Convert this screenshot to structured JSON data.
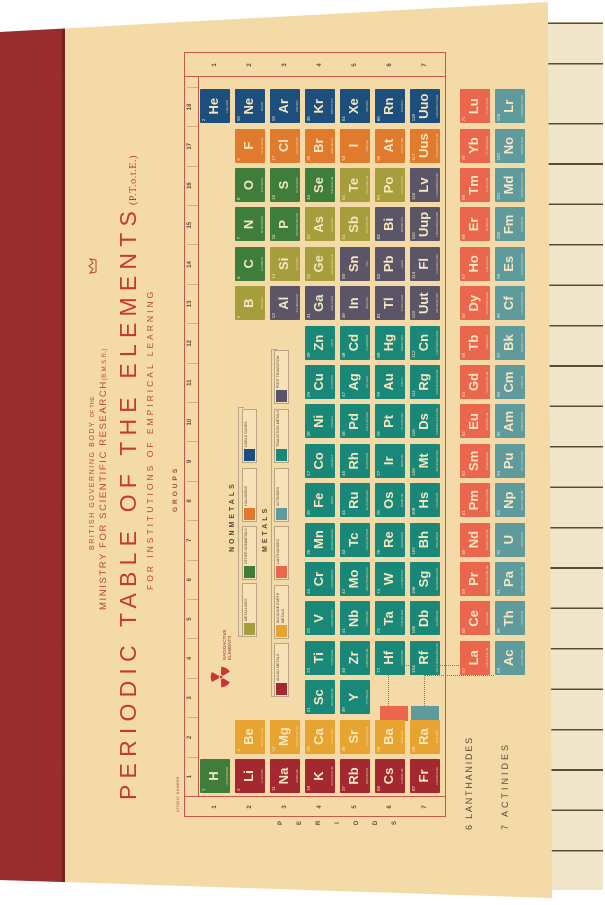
{
  "header": {
    "british": "BRITISH GOVERNING BODY",
    "british_small": "OF THE",
    "ministry": "MINISTRY FOR SCIENTIFIC RESEARCH",
    "ministry_abbr": "(B.M.S.R.)",
    "title": "PERIODIC TABLE OF THE ELEMENTS",
    "title_abbr": "(P.T.o.t.E.)",
    "subtitle": "FOR INSTITUTIONS OF EMPIRICAL LEARNING"
  },
  "labels": {
    "groups": "GROUPS",
    "atomic_number": "ATOMIC NUMBER",
    "periods_letters": [
      "P",
      "E",
      "R",
      "I",
      "O",
      "D",
      "S"
    ],
    "nonmetals": "NONMETALS",
    "metals": "METALS",
    "radioactive": "RADIOACTIVE ELEMENTS",
    "lanthanides": "LANTHANIDES",
    "actinides": "ACTINIDES",
    "lanthanides_period": "6",
    "actinides_period": "7"
  },
  "group_numbers": [
    "1",
    "2",
    "3",
    "4",
    "5",
    "6",
    "7",
    "8",
    "9",
    "10",
    "11",
    "12",
    "13",
    "14",
    "15",
    "16",
    "17",
    "18"
  ],
  "period_numbers": [
    "1",
    "2",
    "3",
    "4",
    "5",
    "6",
    "7"
  ],
  "category_colors": {
    "nm": "#3f7e3a",
    "ng": "#1d4f7c",
    "ha": "#e07b2e",
    "ml": "#a69e3c",
    "pt": "#5b5568",
    "tm": "#1a8878",
    "am": "#a3282f",
    "ae": "#e8a431",
    "la": "#ea664c",
    "ac": "#5f9a9c"
  },
  "legend": {
    "nonmetals": [
      {
        "cat": "ml",
        "label": "METALLOIDS"
      },
      {
        "cat": "nm",
        "label": "OTHER NONMETALS"
      },
      {
        "cat": "ha",
        "label": "HALOGENS"
      },
      {
        "cat": "ng",
        "label": "NOBLE GASES"
      }
    ],
    "metals": [
      {
        "cat": "am",
        "label": "ALKALI METALS"
      },
      {
        "cat": "ae",
        "label": "ALKALINE EARTH METALS"
      },
      {
        "cat": "la",
        "label": "LANTHANIDES"
      },
      {
        "cat": "ac",
        "label": "ACTINIDES"
      },
      {
        "cat": "tm",
        "label": "TRANSITION METALS"
      },
      {
        "cat": "pt",
        "label": "POST TRANSITION"
      }
    ]
  },
  "elements": [
    [
      1,
      "H",
      "HYDROGEN",
      "nm",
      1,
      1
    ],
    [
      2,
      "He",
      "HELIUM",
      "ng",
      18,
      1
    ],
    [
      3,
      "Li",
      "LITHIUM",
      "am",
      1,
      2
    ],
    [
      4,
      "Be",
      "BERYLLIUM",
      "ae",
      2,
      2
    ],
    [
      5,
      "B",
      "BORON",
      "ml",
      13,
      2
    ],
    [
      6,
      "C",
      "CARBON",
      "nm",
      14,
      2
    ],
    [
      7,
      "N",
      "NITROGEN",
      "nm",
      15,
      2
    ],
    [
      8,
      "O",
      "OXYGEN",
      "nm",
      16,
      2
    ],
    [
      9,
      "F",
      "FLUORINE",
      "ha",
      17,
      2
    ],
    [
      10,
      "Ne",
      "NEON",
      "ng",
      18,
      2
    ],
    [
      11,
      "Na",
      "SODIUM",
      "am",
      1,
      3
    ],
    [
      12,
      "Mg",
      "MAGNESIUM",
      "ae",
      2,
      3
    ],
    [
      13,
      "Al",
      "ALUMINIUM",
      "pt",
      13,
      3
    ],
    [
      14,
      "Si",
      "SILICON",
      "ml",
      14,
      3
    ],
    [
      15,
      "P",
      "PHOSPHORUS",
      "nm",
      15,
      3
    ],
    [
      16,
      "S",
      "SULPHUR",
      "nm",
      16,
      3
    ],
    [
      17,
      "Cl",
      "CHLORINE",
      "ha",
      17,
      3
    ],
    [
      18,
      "Ar",
      "ARGON",
      "ng",
      18,
      3
    ],
    [
      19,
      "K",
      "POTASSIUM",
      "am",
      1,
      4
    ],
    [
      20,
      "Ca",
      "CALCIUM",
      "ae",
      2,
      4
    ],
    [
      21,
      "Sc",
      "SCANDIUM",
      "tm",
      3,
      4
    ],
    [
      22,
      "Ti",
      "TITANIUM",
      "tm",
      4,
      4
    ],
    [
      23,
      "V",
      "VANADIUM",
      "tm",
      5,
      4
    ],
    [
      24,
      "Cr",
      "CHROMIUM",
      "tm",
      6,
      4
    ],
    [
      25,
      "Mn",
      "MANGANESE",
      "tm",
      7,
      4
    ],
    [
      26,
      "Fe",
      "IRON",
      "tm",
      8,
      4
    ],
    [
      27,
      "Co",
      "COBALT",
      "tm",
      9,
      4
    ],
    [
      28,
      "Ni",
      "NICKEL",
      "tm",
      10,
      4
    ],
    [
      29,
      "Cu",
      "COPPER",
      "tm",
      11,
      4
    ],
    [
      30,
      "Zn",
      "ZINC",
      "tm",
      12,
      4
    ],
    [
      31,
      "Ga",
      "GALLIUM",
      "pt",
      13,
      4
    ],
    [
      32,
      "Ge",
      "GERMANIUM",
      "ml",
      14,
      4
    ],
    [
      33,
      "As",
      "ARSENIC",
      "ml",
      15,
      4
    ],
    [
      34,
      "Se",
      "SELENIUM",
      "nm",
      16,
      4
    ],
    [
      35,
      "Br",
      "BROMINE",
      "ha",
      17,
      4
    ],
    [
      36,
      "Kr",
      "KRYPTON",
      "ng",
      18,
      4
    ],
    [
      37,
      "Rb",
      "RUBIDIUM",
      "am",
      1,
      5
    ],
    [
      38,
      "Sr",
      "STRONTIUM",
      "ae",
      2,
      5
    ],
    [
      39,
      "Y",
      "YTTRIUM",
      "tm",
      3,
      5
    ],
    [
      40,
      "Zr",
      "ZIRCONIUM",
      "tm",
      4,
      5
    ],
    [
      41,
      "Nb",
      "NIOBIUM",
      "tm",
      5,
      5
    ],
    [
      42,
      "Mo",
      "MOLYBDENUM",
      "tm",
      6,
      5
    ],
    [
      43,
      "Tc",
      "TECHNETIUM",
      "tm",
      7,
      5
    ],
    [
      44,
      "Ru",
      "RUTHENIUM",
      "tm",
      8,
      5
    ],
    [
      45,
      "Rh",
      "RHODIUM",
      "tm",
      9,
      5
    ],
    [
      46,
      "Pd",
      "PALLADIUM",
      "tm",
      10,
      5
    ],
    [
      47,
      "Ag",
      "SILVER",
      "tm",
      11,
      5
    ],
    [
      48,
      "Cd",
      "CADMIUM",
      "tm",
      12,
      5
    ],
    [
      49,
      "In",
      "INDIUM",
      "pt",
      13,
      5
    ],
    [
      50,
      "Sn",
      "TIN",
      "pt",
      14,
      5
    ],
    [
      51,
      "Sb",
      "ANTIMONY",
      "ml",
      15,
      5
    ],
    [
      52,
      "Te",
      "TELLURIUM",
      "ml",
      16,
      5
    ],
    [
      53,
      "I",
      "IODINE",
      "ha",
      17,
      5
    ],
    [
      54,
      "Xe",
      "XENON",
      "ng",
      18,
      5
    ],
    [
      55,
      "Cs",
      "CAESIUM",
      "am",
      1,
      6
    ],
    [
      56,
      "Ba",
      "BARIUM",
      "ae",
      2,
      6
    ],
    [
      72,
      "Hf",
      "HAFNIUM",
      "tm",
      4,
      6
    ],
    [
      73,
      "Ta",
      "TANTALUM",
      "tm",
      5,
      6
    ],
    [
      74,
      "W",
      "TUNGSTEN",
      "tm",
      6,
      6
    ],
    [
      75,
      "Re",
      "RHENIUM",
      "tm",
      7,
      6
    ],
    [
      76,
      "Os",
      "OSMIUM",
      "tm",
      8,
      6
    ],
    [
      77,
      "Ir",
      "IRIDIUM",
      "tm",
      9,
      6
    ],
    [
      78,
      "Pt",
      "PLATINUM",
      "tm",
      10,
      6
    ],
    [
      79,
      "Au",
      "GOLD",
      "tm",
      11,
      6
    ],
    [
      80,
      "Hg",
      "MERCURY",
      "tm",
      12,
      6
    ],
    [
      81,
      "Tl",
      "THALLIUM",
      "pt",
      13,
      6
    ],
    [
      82,
      "Pb",
      "LEAD",
      "pt",
      14,
      6
    ],
    [
      83,
      "Bi",
      "BISMUTH",
      "pt",
      15,
      6
    ],
    [
      84,
      "Po",
      "POLONIUM",
      "ml",
      16,
      6
    ],
    [
      85,
      "At",
      "ASTATINE",
      "ha",
      17,
      6
    ],
    [
      86,
      "Rn",
      "RADON",
      "ng",
      18,
      6
    ],
    [
      87,
      "Fr",
      "FRANCIUM",
      "am",
      1,
      7
    ],
    [
      88,
      "Ra",
      "RADIUM",
      "ae",
      2,
      7
    ],
    [
      104,
      "Rf",
      "RUTHERFORDIUM",
      "tm",
      4,
      7
    ],
    [
      105,
      "Db",
      "DUBNIUM",
      "tm",
      5,
      7
    ],
    [
      106,
      "Sg",
      "SEABORGIUM",
      "tm",
      6,
      7
    ],
    [
      107,
      "Bh",
      "BOHRIUM",
      "tm",
      7,
      7
    ],
    [
      108,
      "Hs",
      "HASSIUM",
      "tm",
      8,
      7
    ],
    [
      109,
      "Mt",
      "MEITNERIUM",
      "tm",
      9,
      7
    ],
    [
      110,
      "Ds",
      "DARMSTADTIUM",
      "tm",
      10,
      7
    ],
    [
      111,
      "Rg",
      "ROENTGENIUM",
      "tm",
      11,
      7
    ],
    [
      112,
      "Cn",
      "COPERNICIUM",
      "tm",
      12,
      7
    ],
    [
      113,
      "Uut",
      "UNUNTRIUM",
      "pt",
      13,
      7
    ],
    [
      114,
      "Fl",
      "FLEROVIUM",
      "pt",
      14,
      7
    ],
    [
      115,
      "Uup",
      "UNUNPENTIUM",
      "pt",
      15,
      7
    ],
    [
      116,
      "Lv",
      "LIVERMORIUM",
      "pt",
      16,
      7
    ],
    [
      117,
      "Uus",
      "UNUNSEPTIUM",
      "ha",
      17,
      7
    ],
    [
      118,
      "Uuo",
      "UNUNOCTIUM",
      "ng",
      18,
      7
    ]
  ],
  "lanthanides": [
    [
      57,
      "La",
      "LANTHANUM"
    ],
    [
      58,
      "Ce",
      "CERIUM"
    ],
    [
      59,
      "Pr",
      "PRASEODYMIUM"
    ],
    [
      60,
      "Nd",
      "NEODYMIUM"
    ],
    [
      61,
      "Pm",
      "PROMETHIUM"
    ],
    [
      62,
      "Sm",
      "SAMARIUM"
    ],
    [
      63,
      "Eu",
      "EUROPIUM"
    ],
    [
      64,
      "Gd",
      "GADOLINIUM"
    ],
    [
      65,
      "Tb",
      "TERBIUM"
    ],
    [
      66,
      "Dy",
      "DYSPROSIUM"
    ],
    [
      67,
      "Ho",
      "HOLMIUM"
    ],
    [
      68,
      "Er",
      "ERBIUM"
    ],
    [
      69,
      "Tm",
      "THULIUM"
    ],
    [
      70,
      "Yb",
      "YTTERBIUM"
    ],
    [
      71,
      "Lu",
      "LUTETIUM"
    ]
  ],
  "actinides": [
    [
      89,
      "Ac",
      "ACTINIUM"
    ],
    [
      90,
      "Th",
      "THORIUM"
    ],
    [
      91,
      "Pa",
      "PROTACTINIUM"
    ],
    [
      92,
      "U",
      "URANIUM"
    ],
    [
      93,
      "Np",
      "NEPTUNIUM"
    ],
    [
      94,
      "Pu",
      "PLUTONIUM"
    ],
    [
      95,
      "Am",
      "AMERICIUM"
    ],
    [
      96,
      "Cm",
      "CURIUM"
    ],
    [
      97,
      "Bk",
      "BERKELIUM"
    ],
    [
      98,
      "Cf",
      "CALIFORNIUM"
    ],
    [
      99,
      "Es",
      "EINSTEINIUM"
    ],
    [
      100,
      "Fm",
      "FERMIUM"
    ],
    [
      101,
      "Md",
      "MENDELEVIUM"
    ],
    [
      102,
      "No",
      "NOBELIUM"
    ],
    [
      103,
      "Lr",
      "LAWRENCIUM"
    ]
  ]
}
